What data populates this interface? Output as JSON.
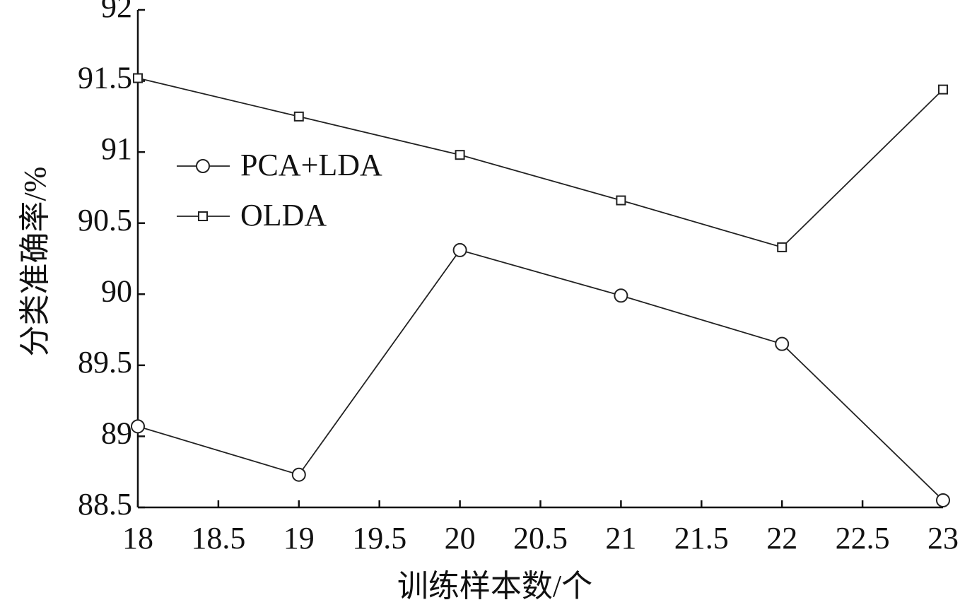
{
  "chart_data": {
    "type": "line",
    "x_label": "训练样本数/个",
    "y_label": "分类准确率/%",
    "x": [
      18,
      19,
      20,
      21,
      22,
      23
    ],
    "series": [
      {
        "name": "PCA+LDA",
        "color": "#222222",
        "marker": "circle",
        "values": [
          89.07,
          88.73,
          90.31,
          89.99,
          89.65,
          88.55
        ]
      },
      {
        "name": "OLDA",
        "color": "#222222",
        "marker": "square",
        "values": [
          91.52,
          91.25,
          90.98,
          90.66,
          90.33,
          91.44
        ]
      }
    ],
    "xlim": [
      18,
      23
    ],
    "xticks": [
      18,
      18.5,
      19,
      19.5,
      20,
      20.5,
      21,
      21.5,
      22,
      22.5,
      23
    ],
    "ylim": [
      88.5,
      92
    ],
    "yticks": [
      88.5,
      89,
      89.5,
      90,
      90.5,
      91,
      91.5,
      92
    ],
    "grid": false,
    "legend": "upper left"
  }
}
